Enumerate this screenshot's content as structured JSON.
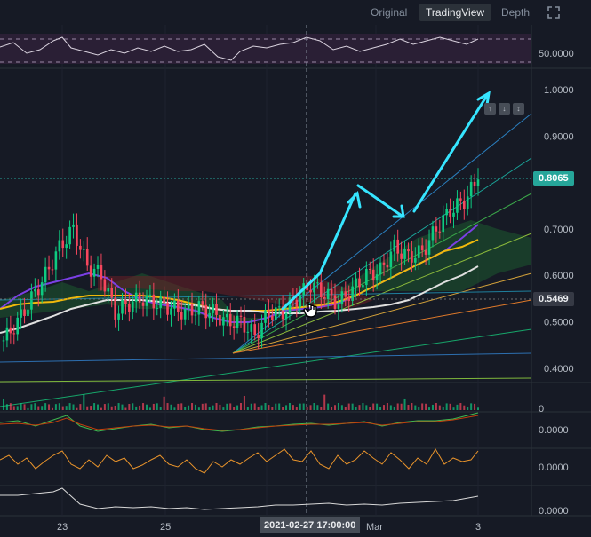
{
  "tabs": [
    {
      "label": "Original",
      "active": false
    },
    {
      "label": "TradingView",
      "active": true
    },
    {
      "label": "Depth",
      "active": false
    }
  ],
  "expand_icon": "expand-icon",
  "price_axis": {
    "ticks": [
      "1.0000",
      "0.9000",
      "0.8000",
      "0.7000",
      "0.6000",
      "0.5000",
      "0.4000"
    ],
    "current_price": "0.8065",
    "crosshair_price": "0.5469",
    "current_price_color": "#26a69a",
    "crosshair_price_color": "#363a45"
  },
  "rsi_axis": {
    "tick": "50.0000"
  },
  "indicator_axes": [
    {
      "tick": "0"
    },
    {
      "tick": "0.0000"
    },
    {
      "tick": "0.0000"
    },
    {
      "tick": "0.0000"
    }
  ],
  "time_axis": {
    "labels": [
      "23",
      "25",
      "Mar",
      "3"
    ],
    "crosshair_time": "2021-02-27 17:00:00"
  },
  "chart_toolbar": {
    "buttons": [
      "↑",
      "↓",
      "↕"
    ]
  },
  "chart_data": {
    "type": "line",
    "ylim": [
      0.4,
      1.0
    ],
    "series": [
      {
        "values": [
          0.46,
          0.5,
          0.55,
          0.6,
          0.66,
          0.7,
          0.62,
          0.6,
          0.52,
          0.54,
          0.55,
          0.54,
          0.53,
          0.52,
          0.53,
          0.52,
          0.5,
          0.5,
          0.47,
          0.52,
          0.52,
          0.55,
          0.58,
          0.56,
          0.54,
          0.57,
          0.6,
          0.61,
          0.66,
          0.64,
          0.65,
          0.7,
          0.74,
          0.76,
          0.8065
        ]
      }
    ]
  },
  "colors": {
    "bull": "#0ecb81",
    "bear": "#f6465d",
    "arrow": "#36e5ff",
    "ma_purple": "#7b3fe4",
    "ma_yellow": "#f0b90b",
    "ma_white": "#e0e0e0"
  }
}
